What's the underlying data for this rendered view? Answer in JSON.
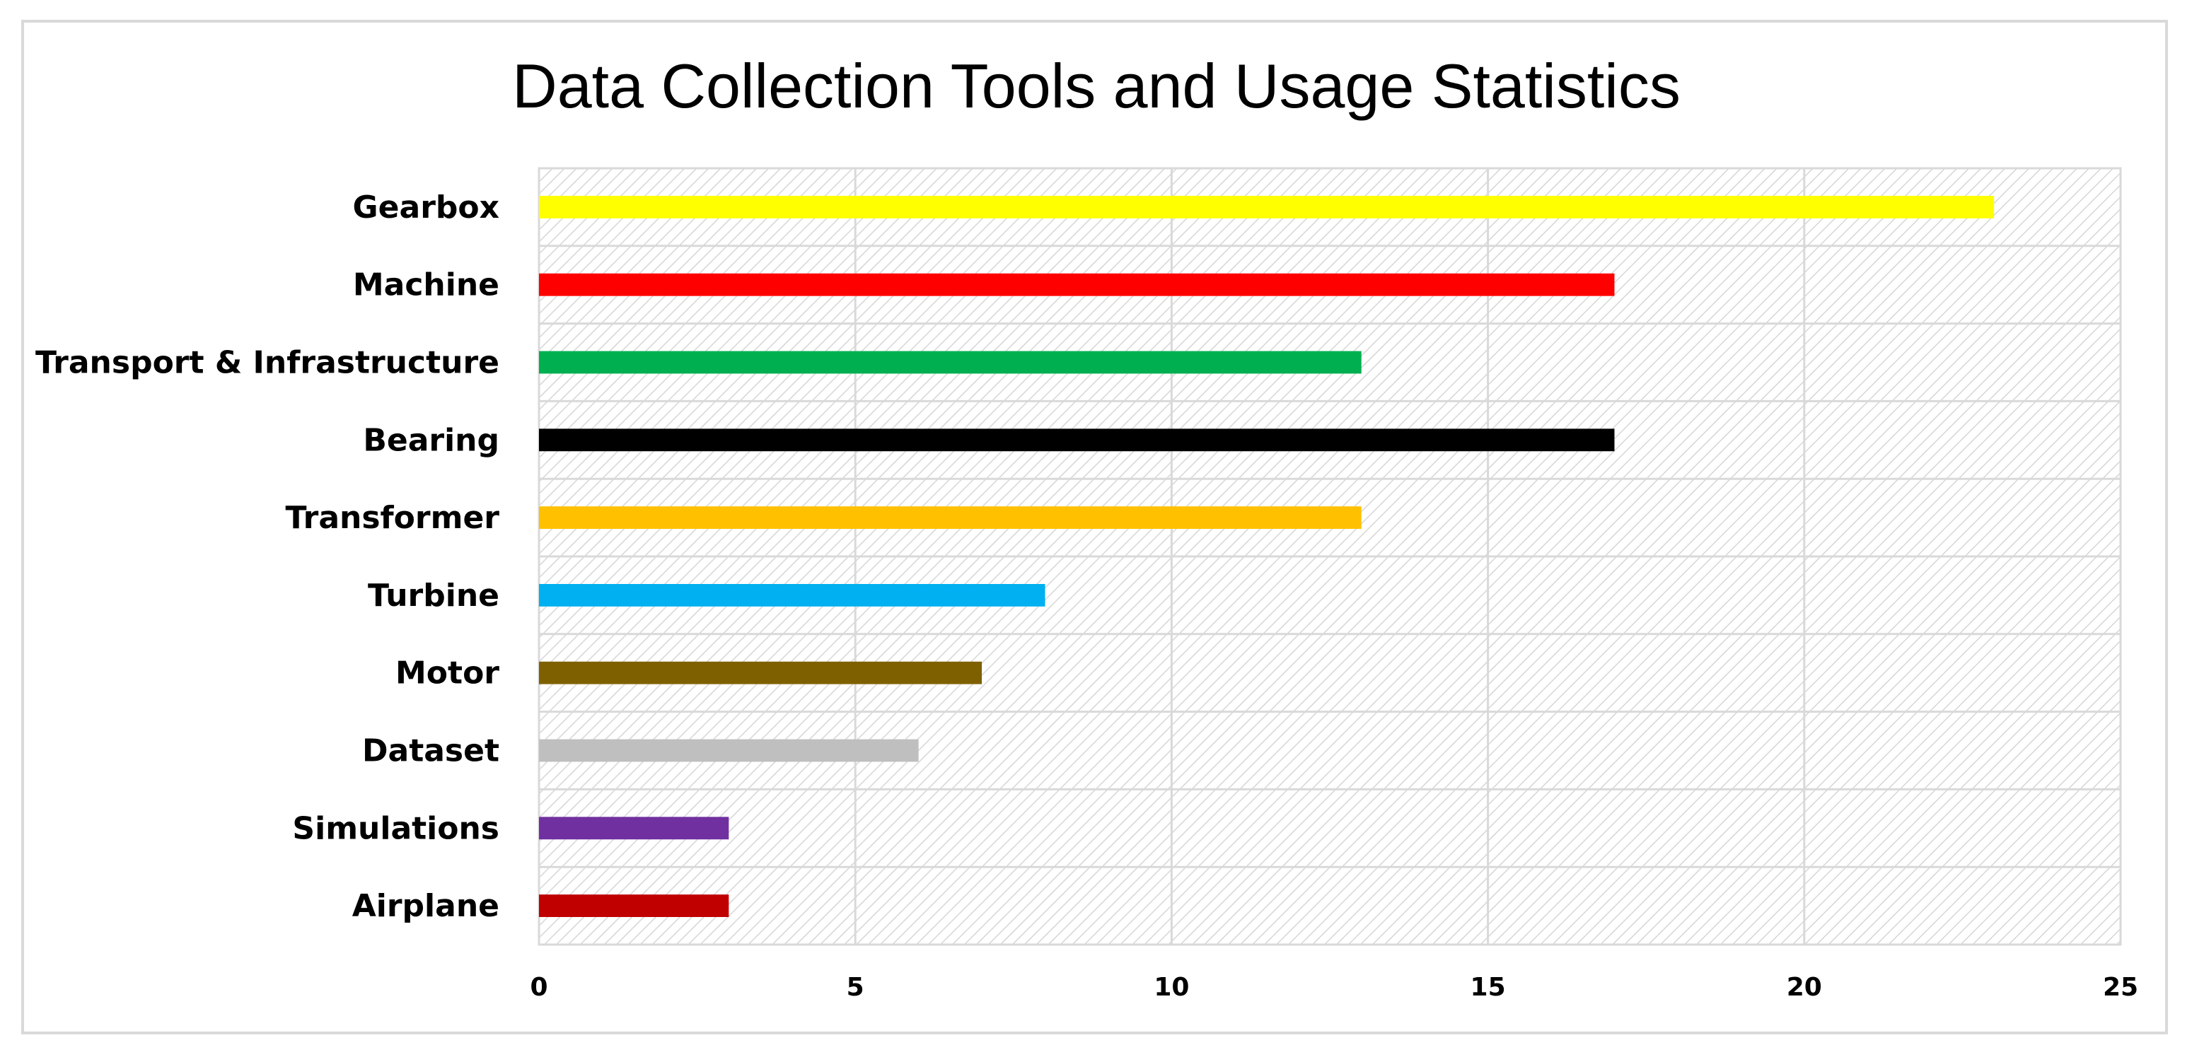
{
  "chart_data": {
    "type": "bar",
    "orientation": "horizontal",
    "title": "Data Collection Tools and Usage Statistics",
    "xlabel": "",
    "ylabel": "",
    "categories": [
      "Gearbox",
      "Machine",
      "Transport & Infrastructure",
      "Bearing",
      "Transformer",
      "Turbine",
      "Motor",
      "Dataset",
      "Simulations",
      "Airplane"
    ],
    "values": [
      23,
      17,
      13,
      17,
      13,
      8,
      7,
      6,
      3,
      3
    ],
    "colors": [
      "#FFFF00",
      "#FF0000",
      "#00B050",
      "#000000",
      "#FFC000",
      "#00B0F0",
      "#7F6000",
      "#BFBFBF",
      "#7030A0",
      "#C00000"
    ],
    "xlim": [
      0,
      25
    ],
    "xticks": [
      0,
      5,
      10,
      15,
      20,
      25
    ],
    "grid": true,
    "plot_background": "diagonal-hatch",
    "legend": "none"
  }
}
